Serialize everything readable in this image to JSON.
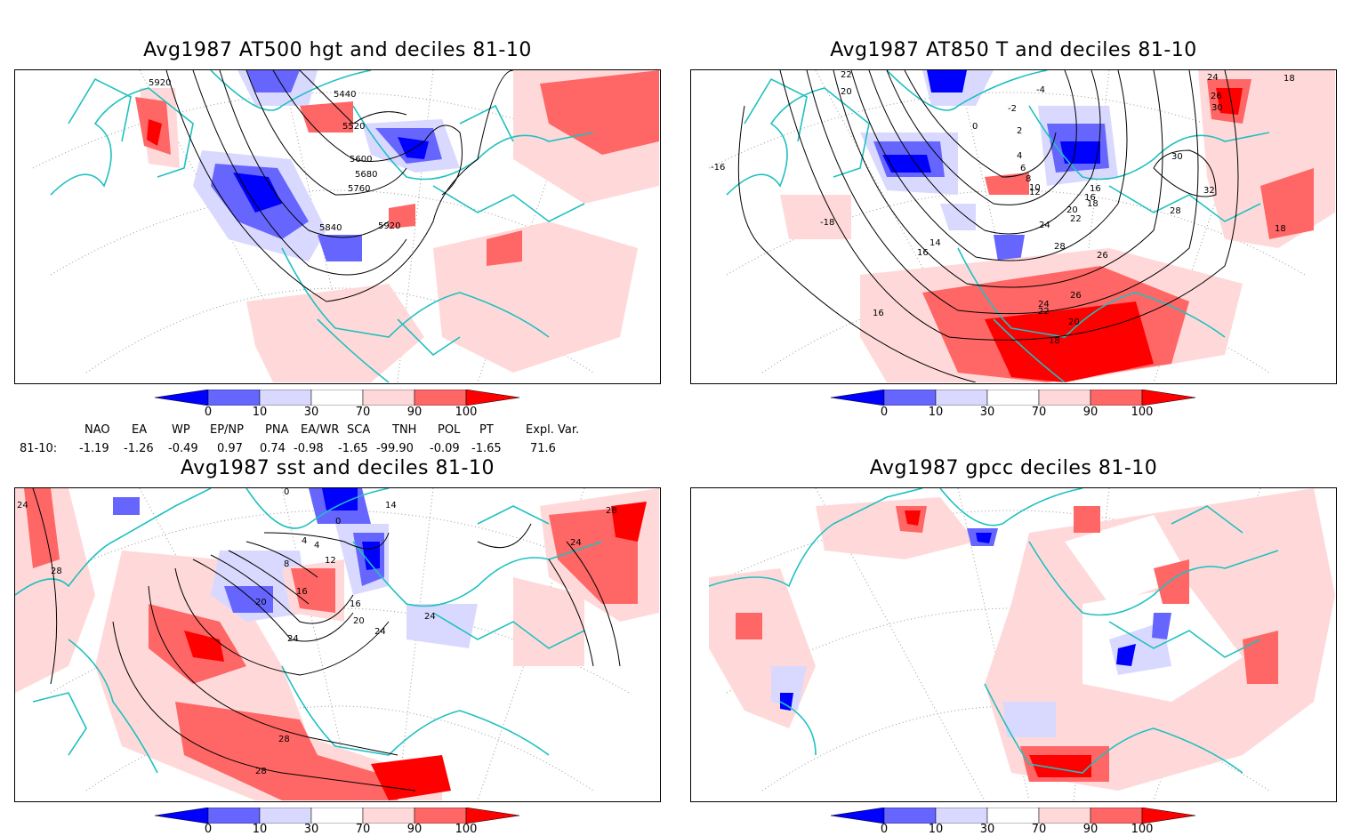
{
  "figure": {
    "panels": [
      {
        "id": "z500",
        "title": "Avg1987 AT500 hgt and deciles 81-10",
        "contour_labels": [
          "5920",
          "5440",
          "5520",
          "5600",
          "5680",
          "5760",
          "5840",
          "5920"
        ]
      },
      {
        "id": "t850",
        "title": "Avg1987 AT850 T and deciles 81-10",
        "contour_labels": [
          "22",
          "20",
          "-4",
          "-2",
          "0",
          "2",
          "4",
          "6",
          "8",
          "10",
          "12",
          "16",
          "18",
          "20",
          "22",
          "24",
          "28",
          "26",
          "26",
          "24",
          "22",
          "20",
          "18",
          "30",
          "32",
          "28",
          "24",
          "26",
          "30",
          "18",
          "18",
          "-16",
          "-18",
          "16",
          "14",
          "16",
          "16"
        ]
      },
      {
        "id": "sst",
        "title": "Avg1987 sst and deciles 81-10",
        "contour_labels": [
          "24",
          "28",
          "0",
          "14",
          "12",
          "8",
          "4",
          "16",
          "20",
          "24",
          "28",
          "28",
          "28",
          "24",
          "24",
          "24",
          "16",
          "20",
          "4",
          "0"
        ]
      },
      {
        "id": "gpcc",
        "title": "Avg1987 gpcc deciles 81-10",
        "contour_labels": []
      }
    ],
    "colorbar": {
      "labels": [
        "0",
        "10",
        "30",
        "70",
        "90",
        "100"
      ],
      "colors": [
        "#0000ff",
        "#6666ff",
        "#d9d9ff",
        "#ffffff",
        "#ffd9d9",
        "#ff6666",
        "#ff0000"
      ]
    },
    "indices": {
      "row_label": "81-10:",
      "columns": [
        {
          "name": "NAO",
          "value": "-1.19"
        },
        {
          "name": "EA",
          "value": "-1.26"
        },
        {
          "name": "WP",
          "value": "-0.49"
        },
        {
          "name": "EP/NP",
          "value": "0.97"
        },
        {
          "name": "PNA",
          "value": "0.74"
        },
        {
          "name": "EA/WR",
          "value": "-0.98"
        },
        {
          "name": "SCA",
          "value": "-1.65"
        },
        {
          "name": "TNH",
          "value": "-99.90"
        },
        {
          "name": "POL",
          "value": "-0.09"
        },
        {
          "name": "PT",
          "value": "-1.65"
        },
        {
          "name": "Expl. Var.",
          "value": "71.6"
        }
      ]
    },
    "colors": {
      "coast": "#20c0c0",
      "strong_pos": "#ff0000",
      "mid_pos": "#ff6666",
      "weak_pos": "#ffd9d9",
      "strong_neg": "#0000ff",
      "mid_neg": "#6666ff",
      "weak_neg": "#d9d9ff",
      "contour": "#000000"
    }
  }
}
